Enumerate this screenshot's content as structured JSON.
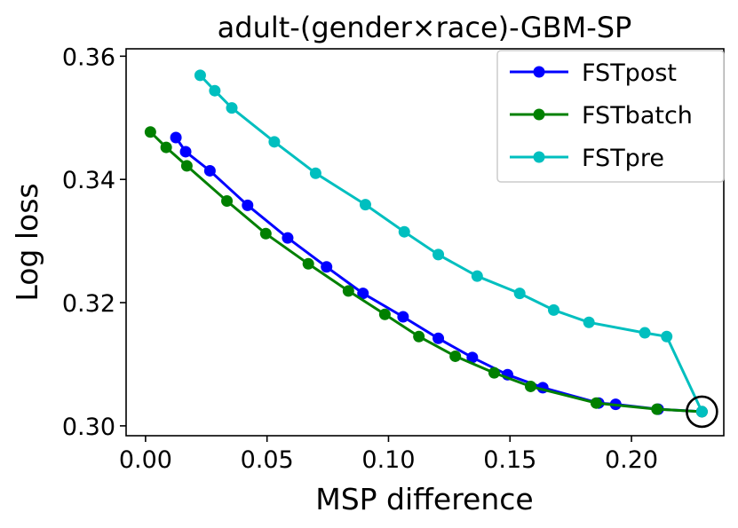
{
  "chart_data": {
    "type": "line",
    "title": "adult-(gender×race)-GBM-SP",
    "xlabel": "MSP difference",
    "ylabel": "Log loss",
    "xlim": [
      -0.008,
      0.238
    ],
    "ylim": [
      0.2984,
      0.3612
    ],
    "xticks": [
      0.0,
      0.05,
      0.1,
      0.15,
      0.2
    ],
    "xtick_labels": [
      "0.00",
      "0.05",
      "0.10",
      "0.15",
      "0.20"
    ],
    "yticks": [
      0.3,
      0.32,
      0.34,
      0.36
    ],
    "ytick_labels": [
      "0.30",
      "0.32",
      "0.34",
      "0.36"
    ],
    "grid": false,
    "legend_position": "top-right",
    "series": [
      {
        "name": "FSTpost",
        "color": "#0000ff",
        "x": [
          0.0125,
          0.0165,
          0.0265,
          0.042,
          0.0585,
          0.0745,
          0.0895,
          0.106,
          0.1205,
          0.1345,
          0.149,
          0.1635,
          0.1865,
          0.1935,
          0.211,
          0.229
        ],
        "y": [
          0.3468,
          0.3445,
          0.3414,
          0.3358,
          0.3305,
          0.3258,
          0.3215,
          0.3177,
          0.3142,
          0.3111,
          0.3083,
          0.3062,
          0.3037,
          0.3035,
          0.3027,
          0.3023
        ]
      },
      {
        "name": "FSTbatch",
        "color": "#008000",
        "x": [
          0.002,
          0.0085,
          0.017,
          0.0335,
          0.0495,
          0.067,
          0.0835,
          0.0985,
          0.1125,
          0.1275,
          0.1435,
          0.1585,
          0.1855,
          0.2105,
          0.229
        ],
        "y": [
          0.3477,
          0.3452,
          0.3422,
          0.3365,
          0.3312,
          0.3263,
          0.3219,
          0.3181,
          0.3145,
          0.3113,
          0.3086,
          0.3064,
          0.3037,
          0.3027,
          0.3023
        ]
      },
      {
        "name": "FSTpre",
        "color": "#00bfbf",
        "x": [
          0.0225,
          0.0285,
          0.0355,
          0.053,
          0.07,
          0.0905,
          0.1065,
          0.1205,
          0.1365,
          0.154,
          0.168,
          0.1825,
          0.2055,
          0.2145,
          0.229
        ],
        "y": [
          0.3569,
          0.3544,
          0.3516,
          0.3461,
          0.341,
          0.3359,
          0.3315,
          0.3278,
          0.3243,
          0.3215,
          0.3188,
          0.3168,
          0.3151,
          0.3145,
          0.3023
        ]
      }
    ],
    "annotations": [
      {
        "type": "circle-marker",
        "x": 0.229,
        "y": 0.3023
      }
    ]
  }
}
